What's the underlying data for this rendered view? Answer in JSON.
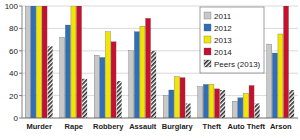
{
  "chart_data": {
    "type": "bar",
    "categories": [
      "Murder",
      "Rape",
      "Robbery",
      "Assault",
      "Burglary",
      "Theft",
      "Auto Theft",
      "Arson"
    ],
    "series": [
      {
        "name": "2011",
        "color": "#c8c8c8",
        "values": [
          100,
          72,
          56,
          60,
          20,
          28,
          15,
          66
        ]
      },
      {
        "name": "2012",
        "color": "#2e6fb5",
        "values": [
          100,
          83,
          54,
          77,
          25,
          30,
          18,
          58
        ]
      },
      {
        "name": "2013",
        "color": "#f2e600",
        "values": [
          100,
          100,
          77,
          82,
          37,
          30,
          22,
          75
        ]
      },
      {
        "name": "2014",
        "color": "#c8102e",
        "values": [
          100,
          100,
          68,
          89,
          36,
          26,
          29,
          100
        ]
      },
      {
        "name": "Peers (2013)",
        "color": "#2b2b2b",
        "line_style": "hatch",
        "values": [
          64,
          35,
          33,
          60,
          13,
          25,
          13,
          25
        ]
      }
    ],
    "ylim": [
      0,
      100
    ],
    "yticks": [
      0,
      20,
      40,
      60,
      80,
      100
    ],
    "grid": true,
    "legend": "upper right"
  }
}
